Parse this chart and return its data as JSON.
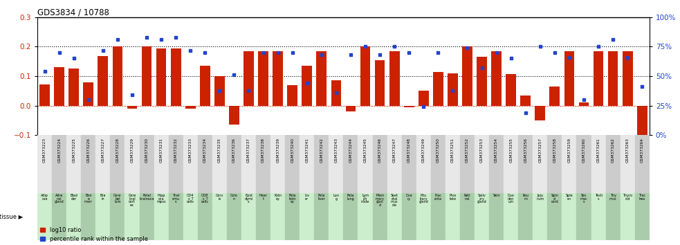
{
  "title": "GDS3834 / 10788",
  "gsm_ids": [
    "GSM373223",
    "GSM373224",
    "GSM373225",
    "GSM373226",
    "GSM373227",
    "GSM373228",
    "GSM373229",
    "GSM373230",
    "GSM373231",
    "GSM373232",
    "GSM373233",
    "GSM373234",
    "GSM373235",
    "GSM373236",
    "GSM373237",
    "GSM373238",
    "GSM373239",
    "GSM373240",
    "GSM373241",
    "GSM373242",
    "GSM373243",
    "GSM373244",
    "GSM373245",
    "GSM373246",
    "GSM373247",
    "GSM373248",
    "GSM373249",
    "GSM373250",
    "GSM373251",
    "GSM373252",
    "GSM373253",
    "GSM373254",
    "GSM373255",
    "GSM373256",
    "GSM373257",
    "GSM373258",
    "GSM373259",
    "GSM373260",
    "GSM373261",
    "GSM373262",
    "GSM373263",
    "GSM373264"
  ],
  "tissues": [
    "Adip\nose",
    "Adre\nnal\ngland",
    "Blad\nder",
    "Bon\ne\nmarr",
    "Bra\nin",
    "Cere\nbel\nlum",
    "Cere\nbral\ncort\nex",
    "Fetal\nbrainoca",
    "Hipp\noca\nmpus",
    "Thal\namu\ns",
    "CD4\n+ T\ncells",
    "CD8\n+ T\ncells",
    "Cerv\nix",
    "Colo\nn",
    "Epid\ndymi\ns",
    "Hear\nt",
    "Kidn\ney",
    "Feta\nkidn\ney",
    "Liv\ner",
    "Feta\nliver",
    "Lun\ng",
    "Feta\nlung",
    "Lym\nph\nnode",
    "Mam\nmary\nglan\nd",
    "Sket\netal\nmus\ncle",
    "Ova\nry",
    "Pitu\nitary\ngland",
    "Plac\nenta",
    "Pros\ntate",
    "Reti\nnal",
    "Saliv\nary\ngland",
    "Skin",
    "Duo\nden\num",
    "Ileu\nm",
    "Jeju\nnum",
    "Spin\nal\ncord",
    "Sple\nen",
    "Sto\nmac\ns",
    "Testi\ns",
    "Thy\nmus",
    "Thyro\noid",
    "Trac\nhea"
  ],
  "log10_ratio": [
    0.072,
    0.13,
    0.125,
    0.08,
    0.167,
    0.2,
    -0.01,
    0.2,
    0.195,
    0.195,
    -0.01,
    0.135,
    0.1,
    -0.065,
    0.185,
    0.185,
    0.185,
    0.07,
    0.135,
    0.185,
    0.085,
    -0.02,
    0.2,
    0.155,
    0.185,
    -0.005,
    0.052,
    0.115,
    0.11,
    0.2,
    0.165,
    0.185,
    0.108,
    0.035,
    -0.05,
    0.065,
    0.185,
    0.012,
    0.185,
    0.185,
    0.185,
    -0.1
  ],
  "percentile_rank_pct": [
    54,
    70,
    65,
    30,
    72,
    81,
    34,
    83,
    81,
    83,
    72,
    70,
    38,
    51,
    38,
    70,
    70,
    70,
    44,
    68,
    36,
    68,
    75,
    68,
    75,
    70,
    24,
    70,
    38,
    74,
    57,
    70,
    65,
    19,
    75,
    70,
    66,
    30,
    75,
    81,
    66,
    41
  ],
  "bar_color": "#cc2200",
  "dot_color": "#2244cc",
  "bg_gsm_odd": "#cccccc",
  "bg_gsm_even": "#e8e8e8",
  "tissue_bg_odd": "#aaccaa",
  "tissue_bg_even": "#cceecc",
  "chart_bg": "#ffffff",
  "ylim": [
    -0.1,
    0.3
  ],
  "y2lim": [
    0,
    100
  ],
  "yticks_left": [
    -0.1,
    0.0,
    0.1,
    0.2,
    0.3
  ],
  "yticks_right": [
    0,
    25,
    50,
    75,
    100
  ],
  "dotted_lines": [
    0.1,
    0.2
  ],
  "zero_line": 0.0
}
